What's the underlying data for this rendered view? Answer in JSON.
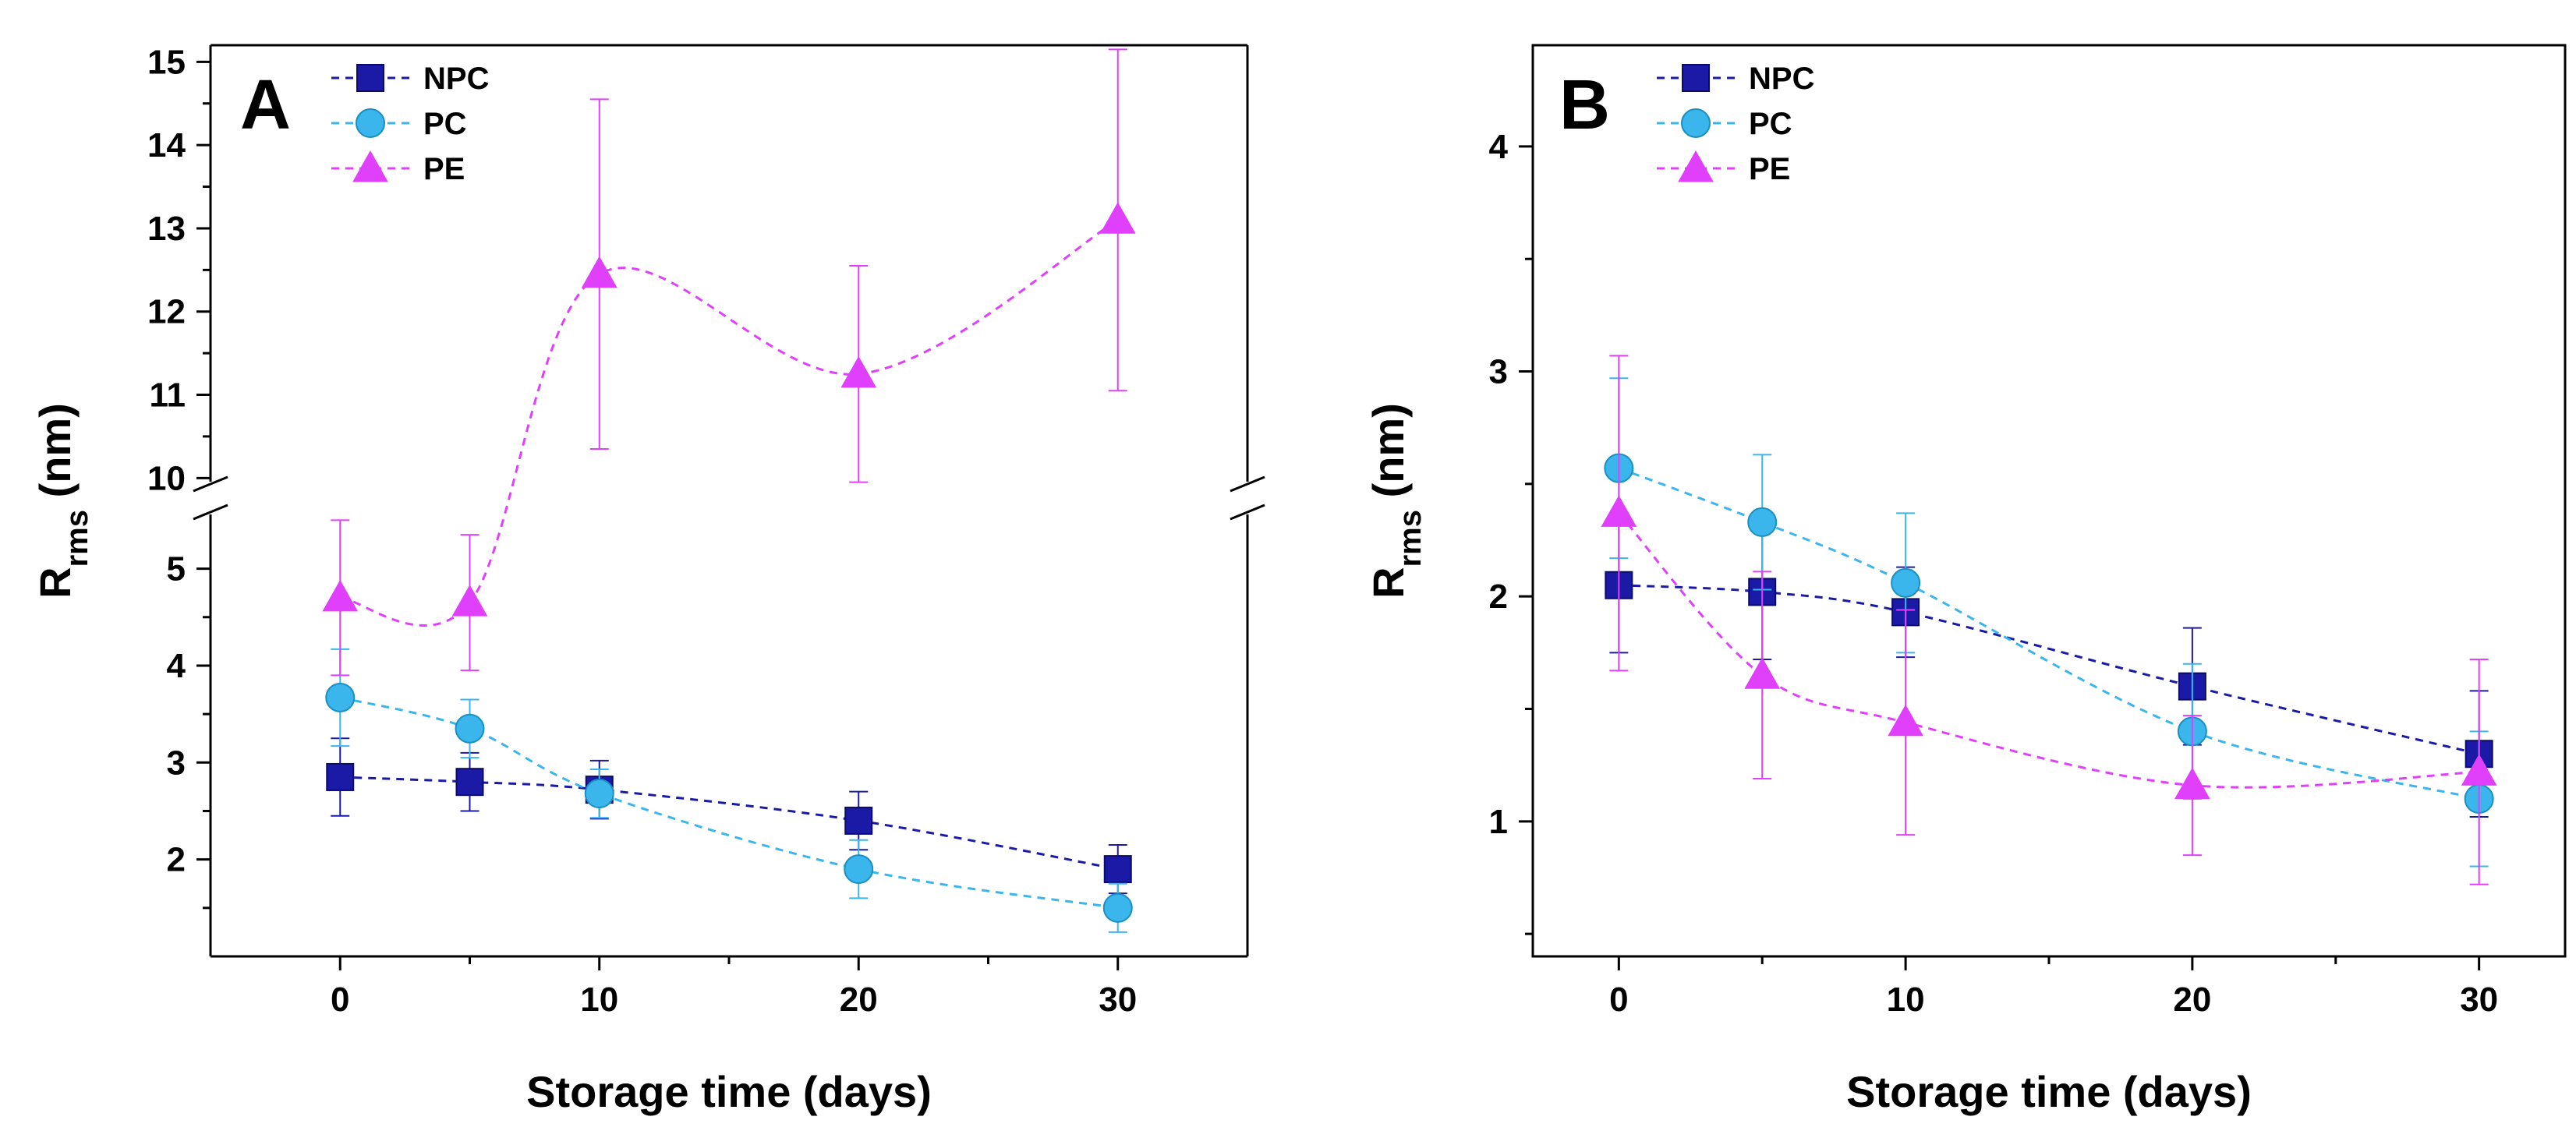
{
  "chart_data": [
    {
      "panel": "A",
      "type": "line",
      "xlabel": "Storage time (days)",
      "ylabel_main": "R",
      "ylabel_sub": "rms",
      "ylabel_unit": " (nm)",
      "x_ticks": [
        "0",
        "10",
        "20",
        "30"
      ],
      "xlim": [
        -5,
        35
      ],
      "y_axis_break": true,
      "ylim_lower": [
        1,
        5.6
      ],
      "ylim_upper": [
        9.9,
        15.2
      ],
      "y_ticks_lower": [
        "2",
        "3",
        "4",
        "5"
      ],
      "y_ticks_upper": [
        "10",
        "11",
        "12",
        "13",
        "14",
        "15"
      ],
      "legend_position": "top-left",
      "series": [
        {
          "name": "NPC",
          "marker": "square",
          "color": "#1a1aa6",
          "x": [
            0,
            5,
            10,
            20,
            30
          ],
          "y": [
            2.85,
            2.8,
            2.72,
            2.4,
            1.9
          ],
          "err": [
            0.4,
            0.3,
            0.3,
            0.3,
            0.25
          ]
        },
        {
          "name": "PC",
          "marker": "circle",
          "color": "#3bb6ec",
          "x": [
            0,
            5,
            10,
            20,
            30
          ],
          "y": [
            3.67,
            3.35,
            2.68,
            1.9,
            1.5
          ],
          "err": [
            0.5,
            0.3,
            0.25,
            0.3,
            0.25
          ]
        },
        {
          "name": "PE",
          "marker": "triangle",
          "color": "#e040fb",
          "x": [
            0,
            5,
            10,
            20,
            30
          ],
          "y": [
            4.7,
            4.65,
            12.45,
            11.25,
            13.1
          ],
          "err": [
            0.8,
            0.7,
            2.1,
            1.3,
            2.05
          ]
        }
      ]
    },
    {
      "panel": "B",
      "type": "line",
      "xlabel": "Storage time (days)",
      "ylabel_main": "R",
      "ylabel_sub": "rms",
      "ylabel_unit": " (nm)",
      "x_ticks": [
        "0",
        "10",
        "20",
        "30"
      ],
      "xlim": [
        -3,
        33
      ],
      "ylim": [
        0.4,
        4.45
      ],
      "y_ticks": [
        "1",
        "2",
        "3",
        "4"
      ],
      "legend_position": "top-left",
      "series": [
        {
          "name": "NPC",
          "marker": "square",
          "color": "#1a1aa6",
          "x": [
            0,
            5,
            10,
            20,
            30
          ],
          "y": [
            2.05,
            2.02,
            1.93,
            1.6,
            1.3
          ],
          "err": [
            0.3,
            0.3,
            0.2,
            0.26,
            0.28
          ]
        },
        {
          "name": "PC",
          "marker": "circle",
          "color": "#3bb6ec",
          "x": [
            0,
            5,
            10,
            20,
            30
          ],
          "y": [
            2.57,
            2.33,
            2.06,
            1.4,
            1.1
          ],
          "err": [
            0.4,
            0.3,
            0.31,
            0.3,
            0.3
          ]
        },
        {
          "name": "PE",
          "marker": "triangle",
          "color": "#e040fb",
          "x": [
            0,
            5,
            10,
            20,
            30
          ],
          "y": [
            2.37,
            1.65,
            1.44,
            1.16,
            1.22
          ],
          "err": [
            0.7,
            0.46,
            0.5,
            0.31,
            0.5
          ]
        }
      ]
    }
  ]
}
